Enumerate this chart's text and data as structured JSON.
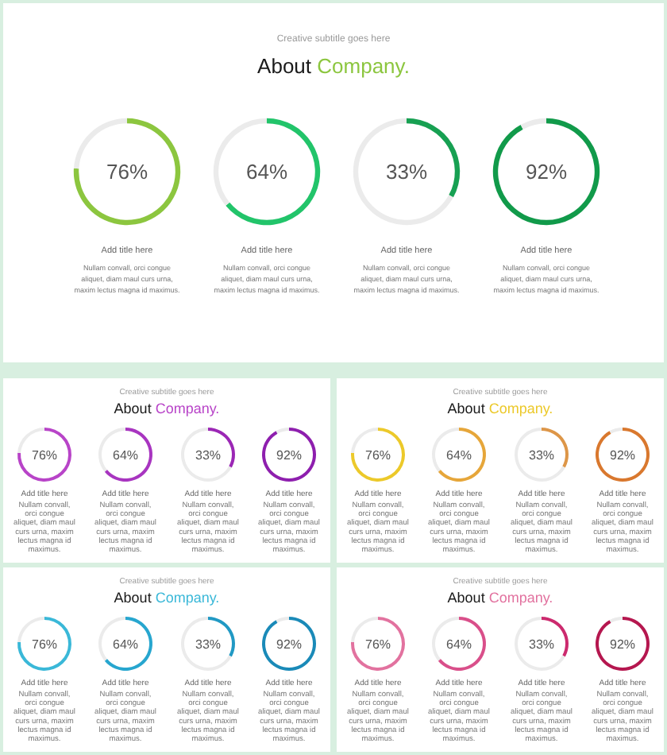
{
  "chart_data": [
    {
      "type": "other",
      "title": "About Company.",
      "subtitle": "Creative subtitle goes here"
    },
    {
      "type": "donut",
      "title": "Add title here",
      "categories": [
        null,
        null
      ],
      "values": [
        76,
        24
      ],
      "colors": [
        "#8cc63f",
        "#ebebeb"
      ],
      "value_labels": [
        "76%",
        null
      ],
      "annotations": [
        "Nullam convall, orci congue aliquet, diam maul curs urna, maxim lectus magna id maximus."
      ]
    },
    {
      "type": "donut",
      "title": "Add title here",
      "categories": [
        null,
        null
      ],
      "values": [
        64,
        36
      ],
      "colors": [
        "#22c46a",
        "#ebebeb"
      ],
      "value_labels": [
        "64%",
        null
      ],
      "annotations": [
        "Nullam convall, orci congue aliquet, diam maul curs urna, maxim lectus magna id maximus."
      ]
    },
    {
      "type": "donut",
      "title": "Add title here",
      "categories": [
        null,
        null
      ],
      "values": [
        33,
        67
      ],
      "colors": [
        "#17a052",
        "#ebebeb"
      ],
      "value_labels": [
        "33%",
        null
      ],
      "annotations": [
        "Nullam convall, orci congue aliquet, diam maul curs urna, maxim lectus magna id maximus."
      ]
    },
    {
      "type": "donut",
      "title": "Add title here",
      "categories": [
        null,
        null
      ],
      "values": [
        92,
        8
      ],
      "colors": [
        "#119a4a",
        "#ebebeb"
      ],
      "value_labels": [
        "92%",
        null
      ],
      "annotations": [
        "Nullam convall, orci congue aliquet, diam maul curs urna, maxim lectus magna id maximus."
      ]
    },
    {
      "type": "other",
      "title": "About Company.",
      "subtitle": "Creative subtitle goes here"
    },
    {
      "type": "donut",
      "title": "Add title here",
      "categories": [
        null,
        null
      ],
      "values": [
        76,
        24
      ],
      "colors": [
        "#b844c8",
        "#ebebeb"
      ],
      "value_labels": [
        "76%",
        null
      ],
      "annotations": [
        "Nullam convall, orci congue aliquet, diam maul curs urna, maxim lectus magna id maximus."
      ]
    },
    {
      "type": "donut",
      "title": "Add title here",
      "categories": [
        null,
        null
      ],
      "values": [
        64,
        36
      ],
      "colors": [
        "#a835c0",
        "#ebebeb"
      ],
      "value_labels": [
        "64%",
        null
      ],
      "annotations": [
        "Nullam convall, orci congue aliquet, diam maul curs urna, maxim lectus magna id maximus."
      ]
    },
    {
      "type": "donut",
      "title": "Add title here",
      "categories": [
        null,
        null
      ],
      "values": [
        33,
        67
      ],
      "colors": [
        "#9b27b5",
        "#ebebeb"
      ],
      "value_labels": [
        "33%",
        null
      ],
      "annotations": [
        "Nullam convall, orci congue aliquet, diam maul curs urna, maxim lectus magna id maximus."
      ]
    },
    {
      "type": "donut",
      "title": "Add title here",
      "categories": [
        null,
        null
      ],
      "values": [
        92,
        8
      ],
      "colors": [
        "#8e1fae",
        "#ebebeb"
      ],
      "value_labels": [
        "92%",
        null
      ],
      "annotations": [
        "Nullam convall, orci congue aliquet, diam maul curs urna, maxim lectus magna id maximus."
      ]
    },
    {
      "type": "other",
      "title": "About Company.",
      "subtitle": "Creative subtitle goes here"
    },
    {
      "type": "donut",
      "title": "Add title here",
      "categories": [
        null,
        null
      ],
      "values": [
        76,
        24
      ],
      "colors": [
        "#ecc92a",
        "#ebebeb"
      ],
      "value_labels": [
        "76%",
        null
      ],
      "annotations": [
        "Nullam convall, orci congue aliquet, diam maul curs urna, maxim lectus magna id maximus."
      ]
    },
    {
      "type": "donut",
      "title": "Add title here",
      "categories": [
        null,
        null
      ],
      "values": [
        64,
        36
      ],
      "colors": [
        "#e6a63a",
        "#ebebeb"
      ],
      "value_labels": [
        "64%",
        null
      ],
      "annotations": [
        "Nullam convall, orci congue aliquet, diam maul curs urna, maxim lectus magna id maximus."
      ]
    },
    {
      "type": "donut",
      "title": "Add title here",
      "categories": [
        null,
        null
      ],
      "values": [
        33,
        67
      ],
      "colors": [
        "#dd9648",
        "#ebebeb"
      ],
      "value_labels": [
        "33%",
        null
      ],
      "annotations": [
        "Nullam convall, orci congue aliquet, diam maul curs urna, maxim lectus magna id maximus."
      ]
    },
    {
      "type": "donut",
      "title": "Add title here",
      "categories": [
        null,
        null
      ],
      "values": [
        92,
        8
      ],
      "colors": [
        "#d9782e",
        "#ebebeb"
      ],
      "value_labels": [
        "92%",
        null
      ],
      "annotations": [
        "Nullam convall, orci congue aliquet, diam maul curs urna, maxim lectus magna id maximus."
      ]
    },
    {
      "type": "other",
      "title": "About Company.",
      "subtitle": "Creative subtitle goes here"
    },
    {
      "type": "donut",
      "title": "Add title here",
      "categories": [
        null,
        null
      ],
      "values": [
        76,
        24
      ],
      "colors": [
        "#3ab8d8",
        "#ebebeb"
      ],
      "value_labels": [
        "76%",
        null
      ],
      "annotations": [
        "Nullam convall, orci congue aliquet, diam maul curs urna, maxim lectus magna id maximus."
      ]
    },
    {
      "type": "donut",
      "title": "Add title here",
      "categories": [
        null,
        null
      ],
      "values": [
        64,
        36
      ],
      "colors": [
        "#27a6cf",
        "#ebebeb"
      ],
      "value_labels": [
        "64%",
        null
      ],
      "annotations": [
        "Nullam convall, orci congue aliquet, diam maul curs urna, maxim lectus magna id maximus."
      ]
    },
    {
      "type": "donut",
      "title": "Add title here",
      "categories": [
        null,
        null
      ],
      "values": [
        33,
        67
      ],
      "colors": [
        "#2199c4",
        "#ebebeb"
      ],
      "value_labels": [
        "33%",
        null
      ],
      "annotations": [
        "Nullam convall, orci congue aliquet, diam maul curs urna, maxim lectus magna id maximus."
      ]
    },
    {
      "type": "donut",
      "title": "Add title here",
      "categories": [
        null,
        null
      ],
      "values": [
        92,
        8
      ],
      "colors": [
        "#1a8ab8",
        "#ebebeb"
      ],
      "value_labels": [
        "92%",
        null
      ],
      "annotations": [
        "Nullam convall, orci congue aliquet, diam maul curs urna, maxim lectus magna id maximus."
      ]
    },
    {
      "type": "other",
      "title": "About Company.",
      "subtitle": "Creative subtitle goes here"
    },
    {
      "type": "donut",
      "title": "Add title here",
      "categories": [
        null,
        null
      ],
      "values": [
        76,
        24
      ],
      "colors": [
        "#e2729f",
        "#ebebeb"
      ],
      "value_labels": [
        "76%",
        null
      ],
      "annotations": [
        "Nullam convall, orci congue aliquet, diam maul curs urna, maxim lectus magna id maximus."
      ]
    },
    {
      "type": "donut",
      "title": "Add title here",
      "categories": [
        null,
        null
      ],
      "values": [
        64,
        36
      ],
      "colors": [
        "#d94f8a",
        "#ebebeb"
      ],
      "value_labels": [
        "64%",
        null
      ],
      "annotations": [
        "Nullam convall, orci congue aliquet, diam maul curs urna, maxim lectus magna id maximus."
      ]
    },
    {
      "type": "donut",
      "title": "Add title here",
      "categories": [
        null,
        null
      ],
      "values": [
        33,
        67
      ],
      "colors": [
        "#cc2a6e",
        "#ebebeb"
      ],
      "value_labels": [
        "33%",
        null
      ],
      "annotations": [
        "Nullam convall, orci congue aliquet, diam maul curs urna, maxim lectus magna id maximus."
      ]
    },
    {
      "type": "donut",
      "title": "Add title here",
      "categories": [
        null,
        null
      ],
      "values": [
        92,
        8
      ],
      "colors": [
        "#b5174f",
        "#ebebeb"
      ],
      "value_labels": [
        "92%",
        null
      ],
      "annotations": [
        "Nullam convall, orci congue aliquet, diam maul curs urna, maxim lectus magna id maximus."
      ]
    }
  ]
}
